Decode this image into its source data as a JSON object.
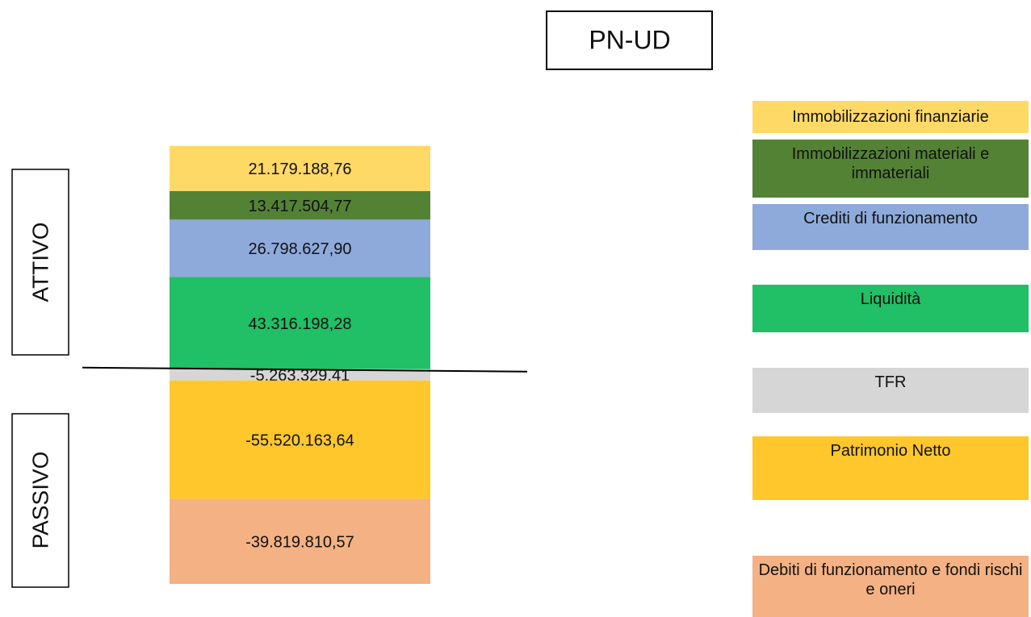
{
  "chart_data": {
    "type": "stacked_bar",
    "title": "PN-UD",
    "groups": [
      "ATTIVO",
      "PASSIVO"
    ],
    "ylim": [
      -101000000,
      105000000
    ],
    "series": [
      {
        "name": "Immobilizzazioni finanziarie",
        "color": "#ffd966",
        "values": [
          21179188.76
        ],
        "value_labels": [
          "21.179.188,76"
        ]
      },
      {
        "name": "Immobilizzazioni materiali e immateriali",
        "color": "#548235",
        "values": [
          13417504.77
        ],
        "value_labels": [
          "13.417.504,77"
        ]
      },
      {
        "name": "Crediti di funzionamento",
        "color": "#8eaadb",
        "values": [
          26798627.9
        ],
        "value_labels": [
          "26.798.627,90"
        ]
      },
      {
        "name": "Liquidità",
        "color": "#21bf66",
        "values": [
          43316198.28
        ],
        "value_labels": [
          "43.316.198,28"
        ]
      },
      {
        "name": "TFR",
        "color": "#d6d6d6",
        "values": [
          -5263329.41
        ],
        "value_labels": [
          "-5.263.329,41"
        ]
      },
      {
        "name": "Patrimonio Netto",
        "color": "#ffc72c",
        "values": [
          -55520163.64
        ],
        "value_labels": [
          "-55.520.163,64"
        ]
      },
      {
        "name": "Debiti di funzionamento e fondi rischi e oneri",
        "color": "#f4b183",
        "values": [
          -39819810.57
        ],
        "value_labels": [
          "-39.819.810,57"
        ]
      }
    ]
  }
}
